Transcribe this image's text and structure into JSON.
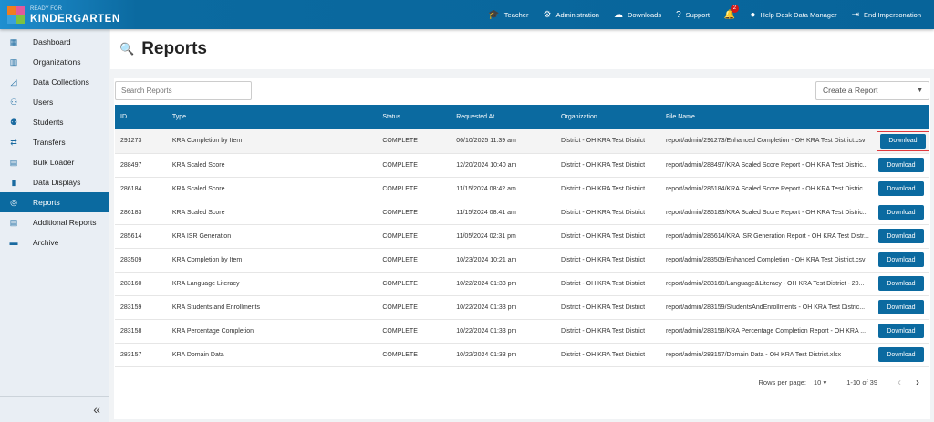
{
  "app": {
    "logo_small": "READY FOR",
    "logo_big": "KINDERGARTEN",
    "logo_letters": [
      "A",
      "A",
      "3",
      "●"
    ],
    "logo_colors": [
      "#f07d1f",
      "#e05a9c",
      "#3aa0dc",
      "#7cc242"
    ],
    "accent": "#0b6aa0"
  },
  "topnav": [
    {
      "label": "Teacher",
      "icon": "graduation-cap-icon",
      "glyph": "🎓"
    },
    {
      "label": "Administration",
      "icon": "gear-icon",
      "glyph": "⚙"
    },
    {
      "label": "Downloads",
      "icon": "cloud-download-icon",
      "glyph": "☁"
    },
    {
      "label": "Support",
      "icon": "help-circle-icon",
      "glyph": "?"
    },
    {
      "label": "",
      "icon": "bell-icon",
      "glyph": "🔔",
      "badge": "2"
    },
    {
      "label": "Help Desk Data Manager",
      "icon": "user-circle-icon",
      "glyph": "●"
    },
    {
      "label": "End Impersonation",
      "icon": "sign-out-icon",
      "glyph": "⇥"
    }
  ],
  "sidebar": {
    "items": [
      {
        "label": "Dashboard",
        "glyph": "▦"
      },
      {
        "label": "Organizations",
        "glyph": "▥"
      },
      {
        "label": "Data Collections",
        "glyph": "◿"
      },
      {
        "label": "Users",
        "glyph": "⚇"
      },
      {
        "label": "Students",
        "glyph": "⚉"
      },
      {
        "label": "Transfers",
        "glyph": "⇄"
      },
      {
        "label": "Bulk Loader",
        "glyph": "▤"
      },
      {
        "label": "Data Displays",
        "glyph": "▮"
      },
      {
        "label": "Reports",
        "glyph": "◎",
        "active": true
      },
      {
        "label": "Additional Reports",
        "glyph": "▤"
      },
      {
        "label": "Archive",
        "glyph": "▬"
      }
    ],
    "collapse": "«"
  },
  "page": {
    "title": "Reports",
    "search_placeholder": "Search Reports",
    "create_label": "Create a Report"
  },
  "table": {
    "columns": [
      "ID",
      "Type",
      "Status",
      "Requested At",
      "Organization",
      "File Name",
      ""
    ],
    "download_label": "Download",
    "rows": [
      [
        "291273",
        "KRA Completion by Item",
        "COMPLETE",
        "06/10/2025 11:39 am",
        "District - OH KRA Test District",
        "report/admin/291273/Enhanced Completion - OH KRA Test District.csv"
      ],
      [
        "288497",
        "KRA Scaled Score",
        "COMPLETE",
        "12/20/2024 10:40 am",
        "District - OH KRA Test District",
        "report/admin/288497/KRA Scaled Score Report - OH KRA Test Distric..."
      ],
      [
        "286184",
        "KRA Scaled Score",
        "COMPLETE",
        "11/15/2024 08:42 am",
        "District - OH KRA Test District",
        "report/admin/286184/KRA Scaled Score Report - OH KRA Test Distric..."
      ],
      [
        "286183",
        "KRA Scaled Score",
        "COMPLETE",
        "11/15/2024 08:41 am",
        "District - OH KRA Test District",
        "report/admin/286183/KRA Scaled Score Report - OH KRA Test Distric..."
      ],
      [
        "285614",
        "KRA ISR Generation",
        "COMPLETE",
        "11/05/2024 02:31 pm",
        "District - OH KRA Test District",
        "report/admin/285614/KRA ISR Generation Report - OH KRA Test Distr..."
      ],
      [
        "283509",
        "KRA Completion by Item",
        "COMPLETE",
        "10/23/2024 10:21 am",
        "District - OH KRA Test District",
        "report/admin/283509/Enhanced Completion - OH KRA Test District.csv"
      ],
      [
        "283160",
        "KRA Language Literacy",
        "COMPLETE",
        "10/22/2024 01:33 pm",
        "District - OH KRA Test District",
        "report/admin/283160/Language&Literacy - OH KRA Test District - 20..."
      ],
      [
        "283159",
        "KRA Students and Enrollments",
        "COMPLETE",
        "10/22/2024 01:33 pm",
        "District - OH KRA Test District",
        "report/admin/283159/StudentsAndEnrollments - OH KRA Test Distric..."
      ],
      [
        "283158",
        "KRA Percentage Completion",
        "COMPLETE",
        "10/22/2024 01:33 pm",
        "District - OH KRA Test District",
        "report/admin/283158/KRA Percentage Completion Report - OH KRA ..."
      ],
      [
        "283157",
        "KRA Domain Data",
        "COMPLETE",
        "10/22/2024 01:33 pm",
        "District - OH KRA Test District",
        "report/admin/283157/Domain Data - OH KRA Test District.xlsx"
      ]
    ]
  },
  "pagination": {
    "rows_per_page_label": "Rows per page:",
    "rows_per_page": "10",
    "range": "1-10 of 39",
    "prev": "‹",
    "next": "›"
  }
}
